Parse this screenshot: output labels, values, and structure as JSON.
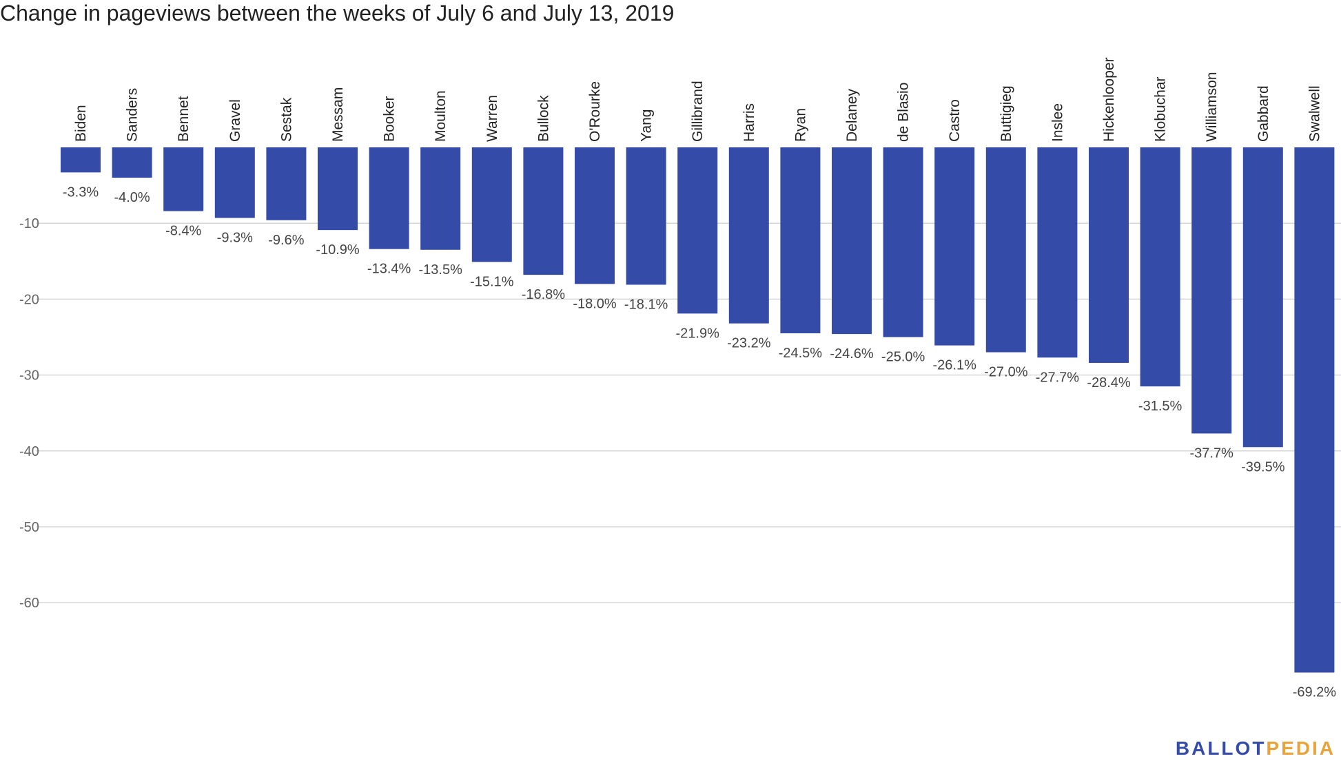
{
  "chart_data": {
    "type": "bar",
    "title": "Change in pageviews between the weeks of July 6 and July 13, 2019",
    "xlabel": "",
    "ylabel": "",
    "categories": [
      "Biden",
      "Sanders",
      "Bennet",
      "Gravel",
      "Sestak",
      "Messam",
      "Booker",
      "Moulton",
      "Warren",
      "Bullock",
      "O'Rourke",
      "Yang",
      "Gillibrand",
      "Harris",
      "Ryan",
      "Delaney",
      "de Blasio",
      "Castro",
      "Buttigieg",
      "Inslee",
      "Hickenlooper",
      "Klobuchar",
      "Williamson",
      "Gabbard",
      "Swalwell"
    ],
    "values": [
      -3.3,
      -4.0,
      -8.4,
      -9.3,
      -9.6,
      -10.9,
      -13.4,
      -13.5,
      -15.1,
      -16.8,
      -18.0,
      -18.1,
      -21.9,
      -23.2,
      -24.5,
      -24.6,
      -25.0,
      -26.1,
      -27.0,
      -27.7,
      -28.4,
      -31.5,
      -37.7,
      -39.5,
      -69.2
    ],
    "value_labels": [
      "-3.3%",
      "-4.0%",
      "-8.4%",
      "-9.3%",
      "-9.6%",
      "-10.9%",
      "-13.4%",
      "-13.5%",
      "-15.1%",
      "-16.8%",
      "-18.0%",
      "-18.1%",
      "-21.9%",
      "-23.2%",
      "-24.5%",
      "-24.6%",
      "-25.0%",
      "-26.1%",
      "-27.0%",
      "-27.7%",
      "-28.4%",
      "-31.5%",
      "-37.7%",
      "-39.5%",
      "-69.2%"
    ],
    "yticks": [
      -10,
      -20,
      -30,
      -40,
      -50,
      -60
    ],
    "ytick_labels": [
      "-10",
      "-20",
      "-30",
      "-40",
      "-50",
      "-60"
    ],
    "ylim": [
      -75,
      0
    ],
    "grid": true,
    "bar_color": "#344ba8"
  },
  "logo": {
    "text_part1": "BALLOT",
    "text_part2": "PEDIA",
    "color_part1": "#344ba8",
    "color_part2": "#e8a33b"
  }
}
